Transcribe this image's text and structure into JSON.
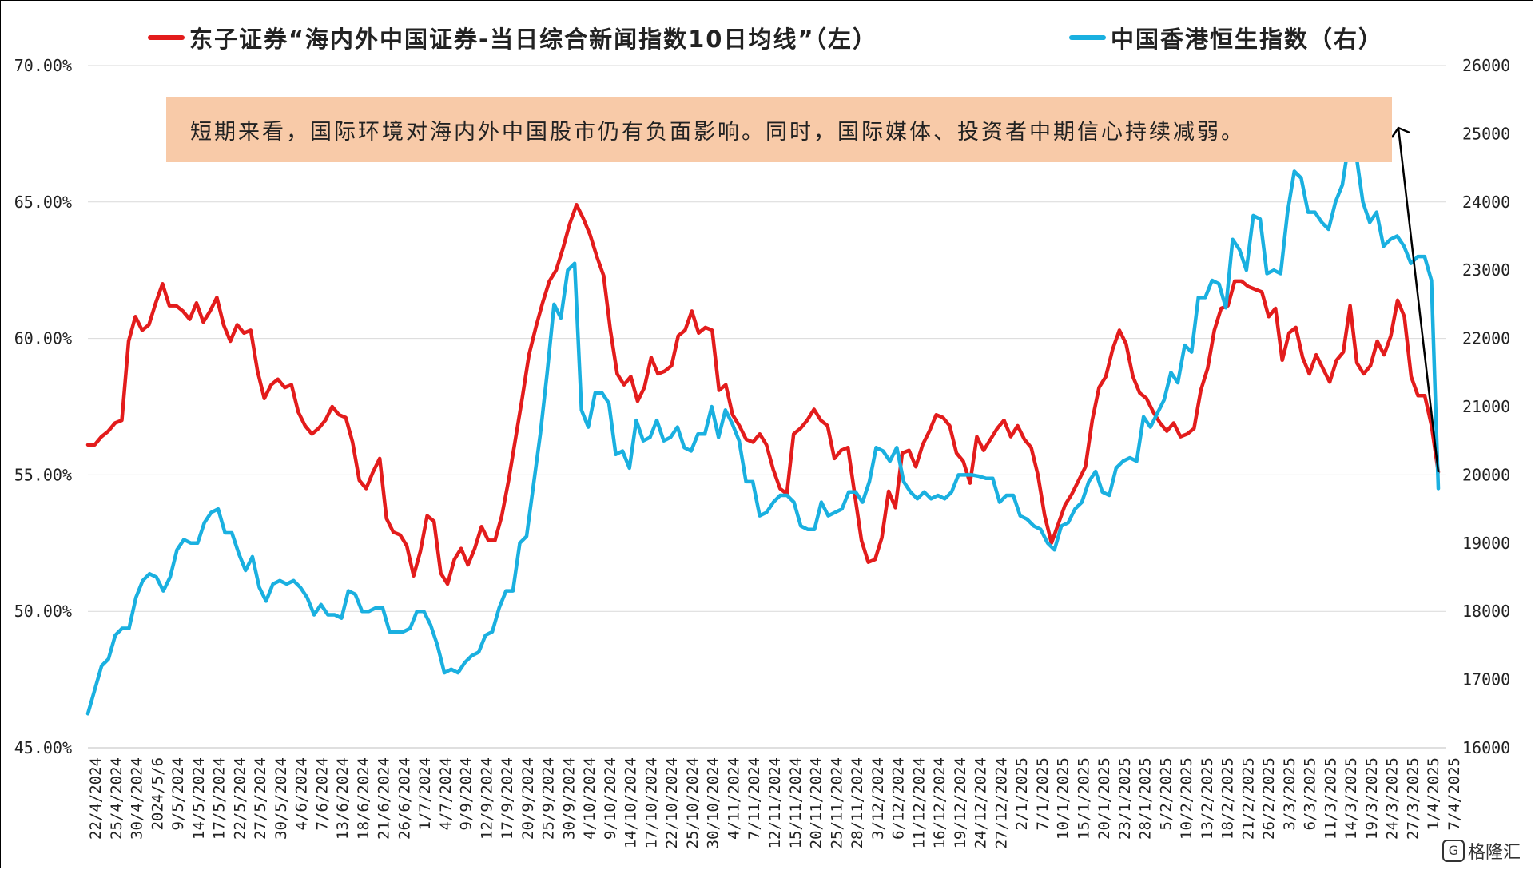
{
  "legend": {
    "left_label": "东子证券“海内外中国证券-当日综合新闻指数10日均线”（左）",
    "right_label": "中国香港恒生指数（右）"
  },
  "annotation": {
    "text": "短期来看，国际环境对海内外中国股市仍有负面影响。同时，国际媒体、投资者中期信心持续减弱。"
  },
  "watermark": {
    "text": "格隆汇",
    "icon": "G"
  },
  "colors": {
    "red_series": "#e31c1c",
    "blue_series": "#1ab0e0",
    "note_bg": "#f8caa8"
  },
  "chart_data": {
    "type": "line",
    "title": "",
    "y_left": {
      "min": 45,
      "max": 70,
      "ticks": [
        "70.00%",
        "65.00%",
        "60.00%",
        "55.00%",
        "50.00%",
        "45.00%"
      ]
    },
    "y_right": {
      "min": 16000,
      "max": 26000,
      "ticks": [
        "26000",
        "25000",
        "24000",
        "23000",
        "22000",
        "21000",
        "20000",
        "19000",
        "18000",
        "17000",
        "16000"
      ]
    },
    "x_tick_labels": [
      "22/4/2024",
      "25/4/2024",
      "30/4/2024",
      "2024/5/6",
      "9/5/2024",
      "14/5/2024",
      "17/5/2024",
      "22/5/2024",
      "27/5/2024",
      "30/5/2024",
      "4/6/2024",
      "7/6/2024",
      "13/6/2024",
      "18/6/2024",
      "21/6/2024",
      "26/6/2024",
      "1/7/2024",
      "4/7/2024",
      "9/9/2024",
      "12/9/2024",
      "17/9/2024",
      "20/9/2024",
      "25/9/2024",
      "30/9/2024",
      "4/10/2024",
      "9/10/2024",
      "14/10/2024",
      "17/10/2024",
      "22/10/2024",
      "25/10/2024",
      "30/10/2024",
      "4/11/2024",
      "7/11/2024",
      "12/11/2024",
      "15/11/2024",
      "20/11/2024",
      "25/11/2024",
      "28/11/2024",
      "3/12/2024",
      "6/12/2024",
      "11/12/2024",
      "16/12/2024",
      "19/12/2024",
      "24/12/2024",
      "27/12/2024",
      "2/1/2025",
      "7/1/2025",
      "10/1/2025",
      "15/1/2025",
      "20/1/2025",
      "23/1/2025",
      "28/1/2025",
      "5/2/2025",
      "10/2/2025",
      "13/2/2025",
      "18/2/2025",
      "21/2/2025",
      "26/2/2025",
      "3/3/2025",
      "6/3/2025",
      "11/3/2025",
      "14/3/2025",
      "19/3/2025",
      "24/3/2025",
      "27/3/2025",
      "1/4/2025",
      "7/4/2025"
    ],
    "grid": "horizontal",
    "legend_position": "top",
    "series": [
      {
        "name": "东子证券“海内外中国证券-当日综合新闻指数10日均线”（左）",
        "axis": "left",
        "color": "#e31c1c",
        "values": [
          56.1,
          56.1,
          56.4,
          56.6,
          56.9,
          57.0,
          59.9,
          60.8,
          60.3,
          60.5,
          61.3,
          62.0,
          61.2,
          61.2,
          61.0,
          60.7,
          61.3,
          60.6,
          61.0,
          61.5,
          60.5,
          59.9,
          60.5,
          60.2,
          60.3,
          58.8,
          57.8,
          58.3,
          58.5,
          58.2,
          58.3,
          57.3,
          56.8,
          56.5,
          56.7,
          57.0,
          57.5,
          57.2,
          57.1,
          56.2,
          54.8,
          54.5,
          55.1,
          55.6,
          53.4,
          52.9,
          52.8,
          52.4,
          51.3,
          52.2,
          53.5,
          53.3,
          51.4,
          51.0,
          51.9,
          52.3,
          51.7,
          52.3,
          53.1,
          52.6,
          52.6,
          53.5,
          54.8,
          56.3,
          57.8,
          59.4,
          60.4,
          61.3,
          62.1,
          62.5,
          63.3,
          64.2,
          64.9,
          64.4,
          63.8,
          63.0,
          62.3,
          60.3,
          58.7,
          58.3,
          58.6,
          57.7,
          58.2,
          59.3,
          58.7,
          58.8,
          59.0,
          60.1,
          60.3,
          61.0,
          60.2,
          60.4,
          60.3,
          58.1,
          58.3,
          57.2,
          56.8,
          56.3,
          56.2,
          56.5,
          56.1,
          55.2,
          54.5,
          54.3,
          56.5,
          56.7,
          57.0,
          57.4,
          57.0,
          56.8,
          55.6,
          55.9,
          56.0,
          54.3,
          52.6,
          51.8,
          51.9,
          52.7,
          54.4,
          53.8,
          55.8,
          55.9,
          55.3,
          56.1,
          56.6,
          57.2,
          57.1,
          56.8,
          55.8,
          55.5,
          54.7,
          56.4,
          55.9,
          56.3,
          56.7,
          57.0,
          56.4,
          56.8,
          56.3,
          56.0,
          55.0,
          53.5,
          52.5,
          53.2,
          53.9,
          54.3,
          54.8,
          55.3,
          57.0,
          58.2,
          58.6,
          59.6,
          60.3,
          59.8,
          58.6,
          58.0,
          57.8,
          57.3,
          56.9,
          56.6,
          56.9,
          56.4,
          56.5,
          56.7,
          58.1,
          58.9,
          60.3,
          61.1,
          61.2,
          62.1,
          62.1,
          61.9,
          61.8,
          61.7,
          60.8,
          61.1,
          59.2,
          60.2,
          60.4,
          59.3,
          58.7,
          59.4,
          58.9,
          58.4,
          59.2,
          59.5,
          61.2,
          59.1,
          58.7,
          59.0,
          59.9,
          59.4,
          60.1,
          61.4,
          60.8,
          58.6,
          57.9,
          57.9,
          56.8,
          55.1
        ]
      },
      {
        "name": "中国香港恒生指数（右）",
        "axis": "right",
        "color": "#1ab0e0",
        "values": [
          16500,
          16850,
          17200,
          17300,
          17650,
          17750,
          17750,
          18200,
          18450,
          18550,
          18500,
          18300,
          18500,
          18900,
          19050,
          19000,
          19000,
          19300,
          19450,
          19500,
          19150,
          19150,
          18850,
          18600,
          18800,
          18350,
          18150,
          18400,
          18450,
          18400,
          18450,
          18350,
          18200,
          17950,
          18100,
          17950,
          17950,
          17900,
          18300,
          18250,
          18000,
          18000,
          18050,
          18050,
          17700,
          17700,
          17700,
          17750,
          18000,
          18000,
          17800,
          17500,
          17100,
          17150,
          17100,
          17250,
          17350,
          17400,
          17650,
          17700,
          18050,
          18300,
          18300,
          19000,
          19100,
          19850,
          20600,
          21500,
          22500,
          22300,
          23000,
          23100,
          20950,
          20700,
          21200,
          21200,
          21050,
          20300,
          20350,
          20100,
          20800,
          20500,
          20550,
          20800,
          20500,
          20550,
          20700,
          20400,
          20350,
          20600,
          20600,
          21000,
          20550,
          20950,
          20750,
          20500,
          19900,
          19900,
          19400,
          19450,
          19600,
          19700,
          19700,
          19600,
          19250,
          19200,
          19200,
          19600,
          19400,
          19450,
          19500,
          19750,
          19750,
          19600,
          19900,
          20400,
          20350,
          20200,
          20400,
          19900,
          19750,
          19650,
          19750,
          19650,
          19700,
          19650,
          19750,
          20000,
          20000,
          20000,
          19980,
          19950,
          19950,
          19600,
          19700,
          19700,
          19400,
          19350,
          19250,
          19200,
          19000,
          18900,
          19250,
          19300,
          19500,
          19600,
          19900,
          20050,
          19750,
          19700,
          20100,
          20200,
          20250,
          20200,
          20850,
          20700,
          20900,
          21100,
          21500,
          21350,
          21900,
          21800,
          22600,
          22600,
          22850,
          22800,
          22450,
          23450,
          23300,
          23000,
          23800,
          23750,
          22950,
          23000,
          22950,
          23850,
          24450,
          24350,
          23850,
          23850,
          23700,
          23600,
          24000,
          24250,
          24900,
          24700,
          24000,
          23700,
          23850,
          23350,
          23450,
          23500,
          23350,
          23100,
          23200,
          23200,
          22850,
          19800
        ]
      }
    ],
    "annotation_arrow": {
      "from_series": "东子证券“海内外中国证券-当日综合新闻指数10日均线”（左）",
      "to": "annotation"
    }
  }
}
